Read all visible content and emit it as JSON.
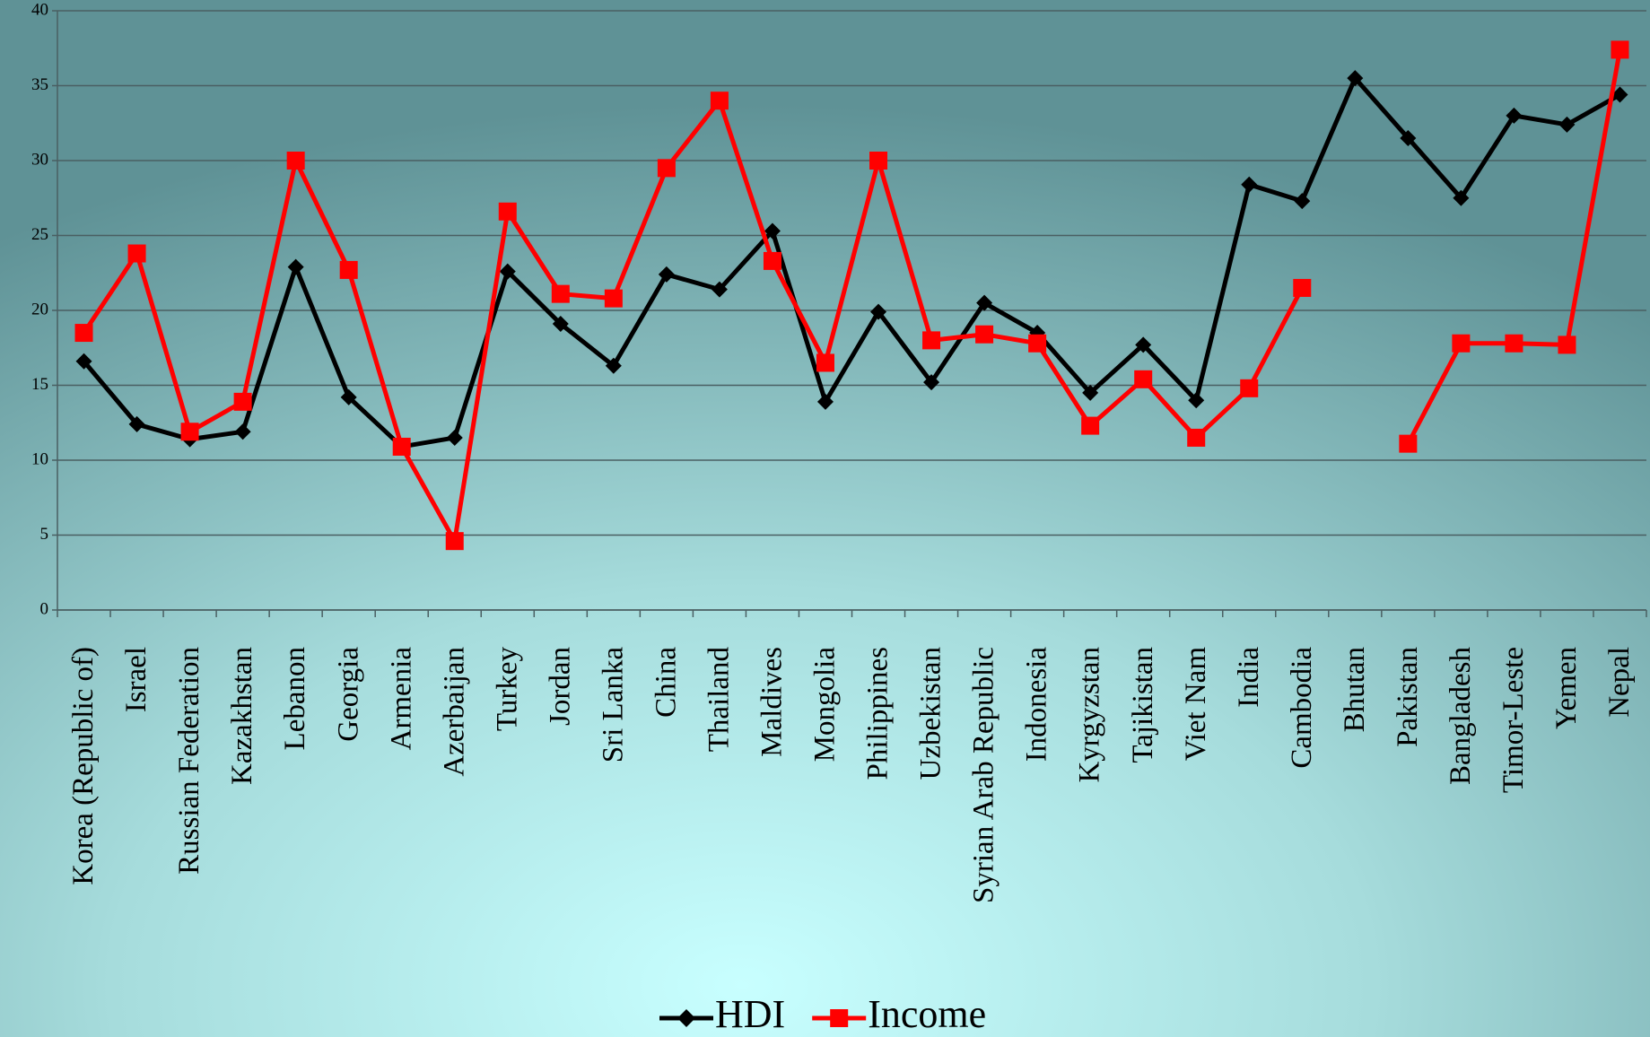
{
  "chart_data": {
    "type": "line",
    "categories": [
      "Korea (Republic of)",
      "Israel",
      "Russian Federation",
      "Kazakhstan",
      "Lebanon",
      "Georgia",
      "Armenia",
      "Azerbaijan",
      "Turkey",
      "Jordan",
      "Sri Lanka",
      "China",
      "Thailand",
      "Maldives",
      "Mongolia",
      "Philippines",
      "Uzbekistan",
      "Syrian Arab Republic",
      "Indonesia",
      "Kyrgyzstan",
      "Tajikistan",
      "Viet Nam",
      "India",
      "Cambodia",
      "Bhutan",
      "Pakistan",
      "Bangladesh",
      "Timor-Leste",
      "Yemen",
      "Nepal"
    ],
    "series": [
      {
        "name": "HDI",
        "color": "#000000",
        "marker": "diamond",
        "values": [
          16.6,
          12.4,
          11.4,
          11.9,
          22.9,
          14.2,
          10.9,
          11.5,
          22.6,
          19.1,
          16.3,
          22.4,
          21.4,
          25.3,
          13.9,
          19.9,
          15.2,
          20.5,
          18.5,
          14.5,
          17.7,
          14.0,
          28.4,
          27.3,
          35.5,
          31.5,
          27.5,
          33.0,
          32.4,
          34.4
        ]
      },
      {
        "name": "Income",
        "color": "#ff0000",
        "marker": "square",
        "values": [
          18.5,
          23.8,
          11.9,
          13.9,
          30.0,
          22.7,
          10.9,
          4.6,
          26.6,
          21.1,
          20.8,
          29.5,
          34.0,
          23.3,
          16.5,
          30.0,
          18.0,
          18.4,
          17.8,
          12.3,
          15.4,
          11.5,
          14.8,
          21.5,
          null,
          11.1,
          17.8,
          17.8,
          17.7,
          37.4
        ]
      }
    ],
    "ylim": [
      0,
      40
    ],
    "yticks": [
      0,
      5,
      10,
      15,
      20,
      25,
      30,
      35,
      40
    ],
    "grid": true,
    "legend": "bottom"
  }
}
